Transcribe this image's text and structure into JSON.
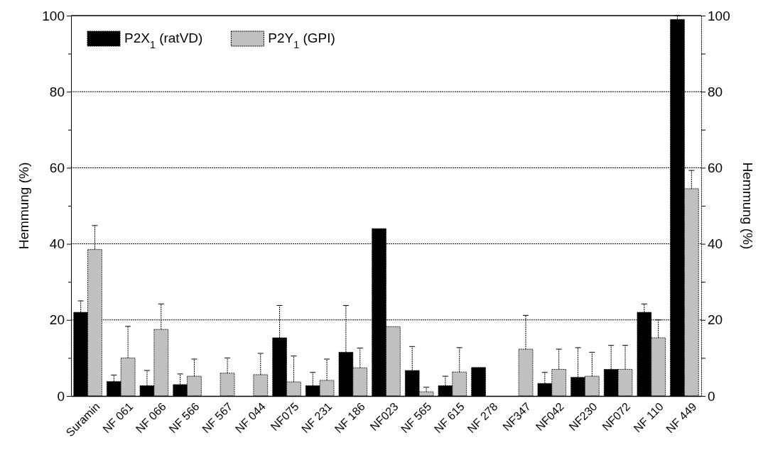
{
  "chart_data": {
    "type": "bar",
    "ylabel": "Hemmung (%)",
    "y2label": "Hemmung (%)",
    "categories": [
      "Suramin",
      "NF 061",
      "NF 066",
      "NF 566",
      "NF 567",
      "NF 044",
      "NF075",
      "NF 231",
      "NF 186",
      "NF023",
      "NF 565",
      "NF 615",
      "NF 278",
      "NF347",
      "NF042",
      "NF230",
      "NF072",
      "NF 110",
      "NF 449"
    ],
    "series": [
      {
        "name": "P2X$_{1}$ (ratVD)",
        "color": "#000000",
        "values": [
          22,
          3.8,
          2.7,
          3,
          null,
          null,
          15.3,
          2.7,
          11.5,
          44,
          6.7,
          2.7,
          7.5,
          null,
          3.3,
          4.9,
          7,
          22,
          99
        ],
        "errors": [
          [
            22,
            25
          ],
          [
            3.8,
            5.5
          ],
          [
            2.7,
            6.7
          ],
          [
            3,
            5.8
          ],
          null,
          null,
          [
            15.3,
            23.8
          ],
          [
            2.7,
            6.2
          ],
          [
            11.5,
            23.8
          ],
          null,
          [
            6.7,
            13
          ],
          [
            2.7,
            5.2
          ],
          null,
          null,
          [
            3.3,
            6.2
          ],
          [
            4.9,
            12.7
          ],
          [
            7,
            13.3
          ],
          [
            22,
            24.2
          ],
          [
            99,
            100
          ]
        ]
      },
      {
        "name": "P2Y$_{1}$ (GPI)",
        "color": "#c0c0c0",
        "values": [
          38.5,
          10,
          17.5,
          5.2,
          6,
          5.6,
          3.7,
          4.1,
          7.4,
          18.2,
          1.1,
          6.3,
          null,
          12.3,
          7,
          5.2,
          7,
          15.3,
          54.5
        ],
        "errors": [
          [
            38.5,
            44.8
          ],
          [
            10,
            18.3
          ],
          [
            17.5,
            24.2
          ],
          [
            5.2,
            9.7
          ],
          [
            6,
            10
          ],
          [
            5.6,
            11.2
          ],
          [
            3.7,
            10.5
          ],
          [
            4.1,
            9.7
          ],
          [
            7.4,
            12.6
          ],
          null,
          [
            1.1,
            2.3
          ],
          [
            6.3,
            12.7
          ],
          null,
          [
            12.3,
            21.2
          ],
          [
            7,
            12.3
          ],
          [
            5.2,
            11.5
          ],
          [
            7,
            13.3
          ],
          [
            15.3,
            20
          ],
          [
            54.5,
            59.3
          ]
        ]
      }
    ],
    "ylim": [
      0,
      100
    ],
    "yticks": [
      0,
      {
        "value": 10,
        "label": null
      },
      20,
      {
        "value": 30,
        "label": null
      },
      40,
      {
        "value": 50,
        "label": null
      },
      60,
      {
        "value": 70,
        "label": null
      },
      80,
      {
        "value": 90,
        "label": null
      },
      100
    ],
    "y2lim": [
      0,
      100
    ],
    "y2ticks": [
      0,
      {
        "value": 10,
        "label": null
      },
      20,
      {
        "value": 30,
        "label": null
      },
      40,
      {
        "value": 50,
        "label": null
      },
      60,
      {
        "value": 70,
        "label": null
      },
      80,
      {
        "value": 90,
        "label": null
      },
      100
    ],
    "grid": "y",
    "legend": "top left"
  }
}
